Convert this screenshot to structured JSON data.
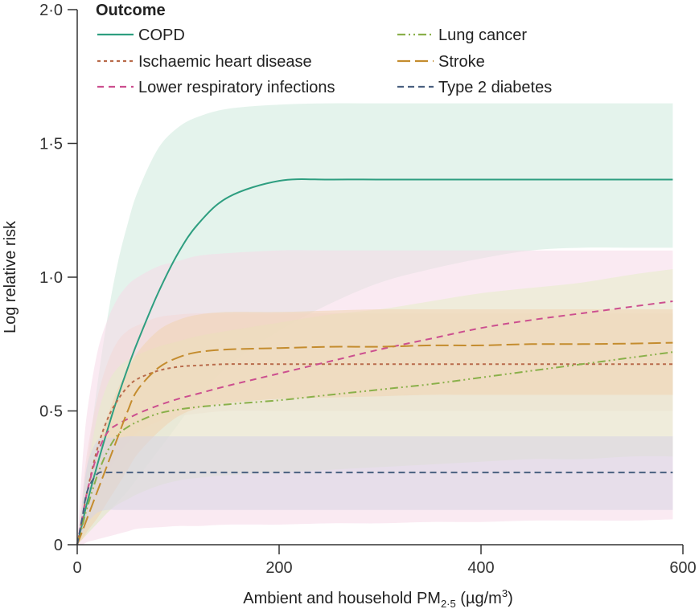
{
  "chart_data": {
    "type": "line",
    "title": "",
    "xlabel": "Ambient and household PM",
    "xlabel_sub": "2·5",
    "xlabel_unit": " (µg/m",
    "xlabel_sup": "3",
    "xlabel_close": ")",
    "ylabel": "Log relative risk",
    "xlim": [
      0,
      600
    ],
    "ylim": [
      0,
      2.0
    ],
    "x_ticks": [
      0,
      200,
      400,
      600
    ],
    "x_tick_labels": [
      "0",
      "200",
      "400",
      "600"
    ],
    "y_ticks": [
      0,
      0.5,
      1.0,
      1.5,
      2.0
    ],
    "y_tick_labels": [
      "0",
      "0·5",
      "1·0",
      "1·5",
      "2·0"
    ],
    "legend_title": "Outcome",
    "legend_position": "top",
    "x": [
      0,
      5,
      10,
      20,
      30,
      40,
      50,
      60,
      80,
      100,
      120,
      150,
      200,
      250,
      300,
      350,
      400,
      450,
      500,
      550,
      590
    ],
    "series": [
      {
        "name": "COPD",
        "color": "#2e9e80",
        "dash": "solid",
        "values": [
          0,
          0.08,
          0.16,
          0.3,
          0.43,
          0.55,
          0.66,
          0.76,
          0.94,
          1.09,
          1.2,
          1.3,
          1.36,
          1.365,
          1.365,
          1.365,
          1.365,
          1.365,
          1.365,
          1.365,
          1.365
        ],
        "upper": [
          0,
          0.15,
          0.3,
          0.6,
          0.85,
          1.05,
          1.2,
          1.32,
          1.48,
          1.56,
          1.6,
          1.63,
          1.645,
          1.65,
          1.65,
          1.65,
          1.65,
          1.65,
          1.65,
          1.65,
          1.65
        ],
        "lower": [
          0,
          0.02,
          0.04,
          0.08,
          0.12,
          0.16,
          0.2,
          0.25,
          0.35,
          0.45,
          0.55,
          0.67,
          0.8,
          0.9,
          0.98,
          1.03,
          1.07,
          1.1,
          1.11,
          1.11,
          1.11
        ],
        "band_color": "#cde9dc"
      },
      {
        "name": "Ischaemic heart disease",
        "color": "#b86a4a",
        "dash": "4,4",
        "values": [
          0,
          0.1,
          0.2,
          0.36,
          0.47,
          0.54,
          0.59,
          0.62,
          0.65,
          0.665,
          0.67,
          0.675,
          0.675,
          0.675,
          0.675,
          0.675,
          0.675,
          0.675,
          0.675,
          0.675,
          0.675
        ],
        "upper": [
          0,
          0.18,
          0.35,
          0.55,
          0.68,
          0.76,
          0.8,
          0.82,
          0.85,
          0.86,
          0.865,
          0.865,
          0.865,
          0.865,
          0.865,
          0.865,
          0.865,
          0.865,
          0.865,
          0.865,
          0.865
        ],
        "lower": [
          0,
          0.05,
          0.1,
          0.2,
          0.27,
          0.33,
          0.38,
          0.42,
          0.46,
          0.48,
          0.49,
          0.5,
          0.5,
          0.5,
          0.5,
          0.5,
          0.5,
          0.5,
          0.5,
          0.5,
          0.5
        ],
        "band_color": "#f1d7c4"
      },
      {
        "name": "Lower respiratory infections",
        "color": "#cc4f8f",
        "dash": "8,6",
        "values": [
          0,
          0.1,
          0.2,
          0.34,
          0.42,
          0.45,
          0.47,
          0.49,
          0.52,
          0.545,
          0.565,
          0.595,
          0.64,
          0.685,
          0.73,
          0.77,
          0.81,
          0.84,
          0.865,
          0.89,
          0.91
        ],
        "upper": [
          0,
          0.3,
          0.5,
          0.72,
          0.84,
          0.92,
          0.97,
          1.0,
          1.04,
          1.06,
          1.08,
          1.09,
          1.1,
          1.1,
          1.1,
          1.1,
          1.1,
          1.1,
          1.1,
          1.1,
          1.1
        ],
        "lower": [
          0,
          0.0,
          0.01,
          0.02,
          0.03,
          0.04,
          0.05,
          0.06,
          0.065,
          0.07,
          0.07,
          0.075,
          0.075,
          0.08,
          0.08,
          0.085,
          0.085,
          0.09,
          0.09,
          0.09,
          0.095
        ],
        "band_color": "#f6d9e8"
      },
      {
        "name": "Lung cancer",
        "color": "#8ab04a",
        "dash": "10,4,2,4,2,4",
        "values": [
          0,
          0.07,
          0.14,
          0.26,
          0.35,
          0.41,
          0.44,
          0.46,
          0.49,
          0.505,
          0.515,
          0.525,
          0.54,
          0.56,
          0.58,
          0.6,
          0.625,
          0.65,
          0.675,
          0.7,
          0.72
        ],
        "upper": [
          0,
          0.14,
          0.28,
          0.48,
          0.6,
          0.66,
          0.69,
          0.71,
          0.74,
          0.76,
          0.78,
          0.8,
          0.83,
          0.86,
          0.88,
          0.91,
          0.94,
          0.96,
          0.98,
          1.01,
          1.03
        ],
        "lower": [
          0,
          0.02,
          0.04,
          0.08,
          0.12,
          0.15,
          0.17,
          0.19,
          0.22,
          0.24,
          0.25,
          0.26,
          0.27,
          0.28,
          0.29,
          0.3,
          0.31,
          0.32,
          0.32,
          0.33,
          0.33
        ],
        "band_color": "#e5ecc8"
      },
      {
        "name": "Stroke",
        "color": "#c48c2e",
        "dash": "16,6",
        "values": [
          0,
          0.05,
          0.1,
          0.2,
          0.3,
          0.4,
          0.5,
          0.58,
          0.66,
          0.7,
          0.72,
          0.73,
          0.735,
          0.74,
          0.74,
          0.745,
          0.745,
          0.75,
          0.75,
          0.752,
          0.755
        ],
        "upper": [
          0,
          0.1,
          0.2,
          0.35,
          0.48,
          0.58,
          0.65,
          0.72,
          0.8,
          0.84,
          0.86,
          0.87,
          0.87,
          0.875,
          0.88,
          0.88,
          0.88,
          0.88,
          0.88,
          0.88,
          0.88
        ],
        "lower": [
          0,
          0.02,
          0.05,
          0.1,
          0.16,
          0.22,
          0.28,
          0.34,
          0.42,
          0.48,
          0.51,
          0.53,
          0.545,
          0.55,
          0.555,
          0.56,
          0.56,
          0.56,
          0.56,
          0.56,
          0.56
        ],
        "band_color": "#f0d4b0"
      },
      {
        "name": "Type 2 diabetes",
        "color": "#4a6080",
        "dash": "8,5",
        "values": [
          0,
          0.1,
          0.2,
          0.265,
          0.27,
          0.27,
          0.27,
          0.27,
          0.27,
          0.27,
          0.27,
          0.27,
          0.27,
          0.27,
          0.27,
          0.27,
          0.27,
          0.27,
          0.27,
          0.27,
          0.27
        ],
        "upper": [
          0,
          0.16,
          0.3,
          0.39,
          0.4,
          0.4,
          0.405,
          0.405,
          0.405,
          0.405,
          0.405,
          0.405,
          0.405,
          0.405,
          0.405,
          0.405,
          0.405,
          0.405,
          0.405,
          0.405,
          0.405
        ],
        "lower": [
          0,
          0.04,
          0.08,
          0.12,
          0.13,
          0.13,
          0.13,
          0.13,
          0.13,
          0.13,
          0.13,
          0.13,
          0.13,
          0.13,
          0.13,
          0.13,
          0.13,
          0.13,
          0.13,
          0.13,
          0.13
        ],
        "band_color": "#d7d3e4"
      }
    ]
  }
}
